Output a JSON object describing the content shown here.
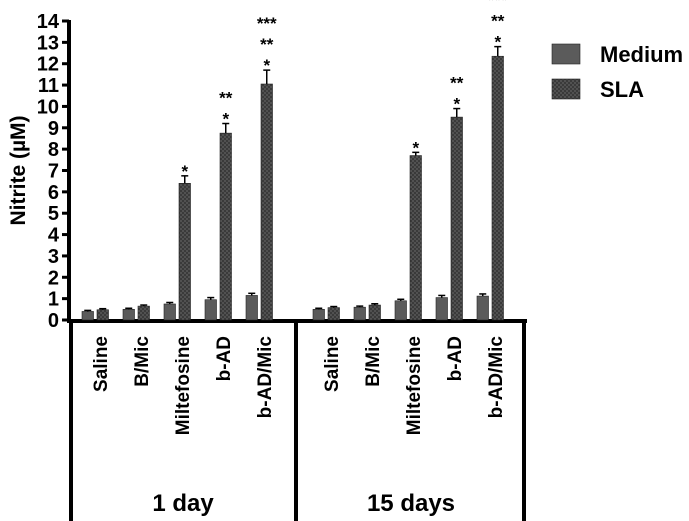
{
  "chart_data": {
    "type": "bar",
    "ylabel": "Nitrite (µM)",
    "ylim": [
      0,
      14
    ],
    "yticks": [
      0,
      1,
      2,
      3,
      4,
      5,
      6,
      7,
      8,
      9,
      10,
      11,
      12,
      13,
      14
    ],
    "grid": false,
    "legend_position": "right",
    "groups": [
      {
        "label": "1 day",
        "categories": [
          "Saline",
          "B/Mic",
          "Miltefosine",
          "b-AD",
          "b-AD/Mic"
        ],
        "series": [
          {
            "name": "Medium",
            "values": [
              0.4,
              0.5,
              0.75,
              0.95,
              1.15
            ],
            "errors": [
              0.05,
              0.05,
              0.07,
              0.1,
              0.1
            ],
            "annotations": [
              "",
              "",
              "",
              "",
              ""
            ]
          },
          {
            "name": "SLA",
            "values": [
              0.48,
              0.65,
              6.4,
              8.75,
              11.05
            ],
            "errors": [
              0.05,
              0.05,
              0.35,
              0.45,
              0.65
            ],
            "annotations": [
              "",
              "",
              "*",
              "**\n*",
              "***\n**\n*"
            ]
          }
        ]
      },
      {
        "label": "15 days",
        "categories": [
          "Saline",
          "B/Mic",
          "Miltefosine",
          "b-AD",
          "b-AD/Mic"
        ],
        "series": [
          {
            "name": "Medium",
            "values": [
              0.5,
              0.6,
              0.9,
              1.05,
              1.12
            ],
            "errors": [
              0.05,
              0.05,
              0.07,
              0.1,
              0.1
            ],
            "annotations": [
              "",
              "",
              "",
              "",
              ""
            ]
          },
          {
            "name": "SLA",
            "values": [
              0.58,
              0.7,
              7.7,
              9.5,
              12.35
            ],
            "errors": [
              0.05,
              0.06,
              0.15,
              0.4,
              0.45
            ],
            "annotations": [
              "",
              "",
              "*",
              "**\n*",
              "***\n**\n*"
            ]
          }
        ]
      }
    ]
  },
  "legend": [
    {
      "name": "Medium",
      "color": "#5b5b5b",
      "pattern": "solid"
    },
    {
      "name": "SLA",
      "color": "#3a3a3a",
      "pattern": "dotted"
    }
  ]
}
